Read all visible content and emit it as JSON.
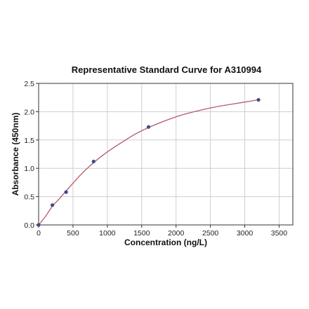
{
  "chart_data": {
    "type": "scatter",
    "title": "Representative Standard Curve for A310994",
    "xlabel": "Concentration (ng/L)",
    "ylabel": "Absorbance (450nm)",
    "xlim": [
      0,
      3700
    ],
    "ylim": [
      0,
      2.5
    ],
    "x_ticks": [
      0,
      500,
      1000,
      1500,
      2000,
      2500,
      3000,
      3500
    ],
    "x_tick_labels": [
      "0",
      "500",
      "1000",
      "1500",
      "2000",
      "2500",
      "3000",
      "3500"
    ],
    "y_ticks": [
      0,
      0.5,
      1.0,
      1.5,
      2.0,
      2.5
    ],
    "y_tick_labels": [
      "0.0",
      "0.5",
      "1.0",
      "1.5",
      "2.0",
      "2.5"
    ],
    "grid": true,
    "legend": "none",
    "points": {
      "x": [
        0,
        200,
        400,
        800,
        1600,
        3200
      ],
      "y": [
        0.0,
        0.35,
        0.58,
        1.12,
        1.73,
        2.21
      ],
      "color": "#3f4a8a"
    },
    "fit_curve": {
      "x": [
        0,
        100,
        200,
        300,
        400,
        600,
        800,
        1000,
        1200,
        1400,
        1600,
        1800,
        2000,
        2200,
        2400,
        2600,
        2800,
        3000,
        3200
      ],
      "y": [
        0.0,
        0.15,
        0.33,
        0.46,
        0.6,
        0.87,
        1.1,
        1.29,
        1.45,
        1.6,
        1.72,
        1.82,
        1.91,
        1.98,
        2.04,
        2.09,
        2.13,
        2.17,
        2.21
      ],
      "color": "#b55a6c"
    }
  }
}
